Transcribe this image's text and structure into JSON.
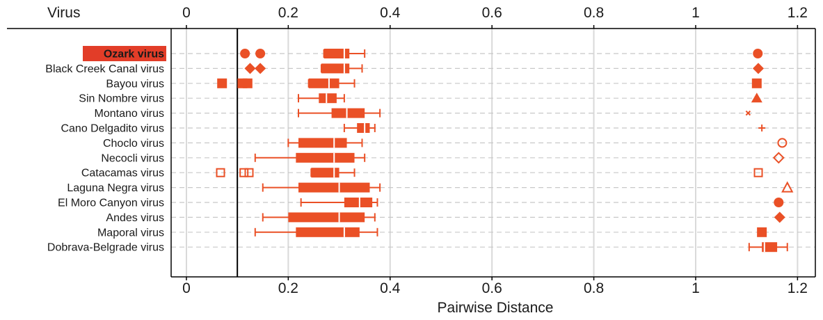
{
  "chart_data": {
    "type": "box",
    "column_header": "Virus",
    "xlabel": "Pairwise Distance",
    "xlim": [
      -0.03,
      1.235
    ],
    "x_ticks": [
      0,
      0.2,
      0.4,
      0.6,
      0.8,
      1,
      1.2
    ],
    "x_tick_labels": [
      "0",
      "0.2",
      "0.4",
      "0.6",
      "0.8",
      "1",
      "1.2"
    ],
    "reference_line_x": 0.1,
    "grid": true,
    "highlight": {
      "virus": "Ozark virus",
      "color": "#e23d28"
    },
    "colors": {
      "series": "#ea5026",
      "highlight_bg": "#e23d28",
      "grid": "#d9d9d9",
      "axis": "#000000"
    },
    "viruses": [
      {
        "name": "Ozark virus",
        "whisker_low": 0.27,
        "q1": 0.27,
        "median": 0.31,
        "q3": 0.32,
        "whisker_high": 0.35,
        "outliers": [
          {
            "x": 0.115,
            "symbol": "filled-circle"
          },
          {
            "x": 0.145,
            "symbol": "filled-circle"
          },
          {
            "x": 1.122,
            "symbol": "filled-circle"
          }
        ]
      },
      {
        "name": "Black Creek Canal virus",
        "whisker_low": 0.265,
        "q1": 0.265,
        "median": 0.31,
        "q3": 0.32,
        "whisker_high": 0.345,
        "outliers": [
          {
            "x": 0.125,
            "symbol": "filled-diamond"
          },
          {
            "x": 0.145,
            "symbol": "filled-diamond"
          },
          {
            "x": 1.123,
            "symbol": "filled-diamond"
          }
        ]
      },
      {
        "name": "Bayou virus",
        "whisker_low": 0.24,
        "q1": 0.24,
        "median": 0.28,
        "q3": 0.3,
        "whisker_high": 0.33,
        "outliers": [
          {
            "x": 0.07,
            "symbol": "filled-square"
          },
          {
            "x": 0.11,
            "symbol": "filled-square"
          },
          {
            "x": 0.12,
            "symbol": "filled-square"
          },
          {
            "x": 1.12,
            "symbol": "filled-square"
          }
        ]
      },
      {
        "name": "Sin Nombre virus",
        "whisker_low": 0.22,
        "q1": 0.26,
        "median": 0.275,
        "q3": 0.295,
        "whisker_high": 0.31,
        "outliers": [
          {
            "x": 1.12,
            "symbol": "filled-triangle"
          }
        ]
      },
      {
        "name": "Montano virus",
        "whisker_low": 0.22,
        "q1": 0.285,
        "median": 0.315,
        "q3": 0.35,
        "whisker_high": 0.38,
        "outliers": [
          {
            "x": 1.103,
            "symbol": "cross"
          }
        ]
      },
      {
        "name": "Cano Delgadito virus",
        "whisker_low": 0.31,
        "q1": 0.335,
        "median": 0.35,
        "q3": 0.36,
        "whisker_high": 0.37,
        "outliers": [
          {
            "x": 1.13,
            "symbol": "plus"
          }
        ]
      },
      {
        "name": "Choclo virus",
        "whisker_low": 0.2,
        "q1": 0.22,
        "median": 0.29,
        "q3": 0.315,
        "whisker_high": 0.345,
        "outliers": [
          {
            "x": 1.17,
            "symbol": "open-circle"
          }
        ]
      },
      {
        "name": "Necocli virus",
        "whisker_low": 0.135,
        "q1": 0.215,
        "median": 0.29,
        "q3": 0.33,
        "whisker_high": 0.35,
        "outliers": [
          {
            "x": 1.163,
            "symbol": "open-diamond"
          }
        ]
      },
      {
        "name": "Catacamas virus",
        "whisker_low": 0.245,
        "q1": 0.245,
        "median": 0.29,
        "q3": 0.3,
        "whisker_high": 0.33,
        "outliers": [
          {
            "x": 0.067,
            "symbol": "open-square"
          },
          {
            "x": 0.113,
            "symbol": "open-square"
          },
          {
            "x": 0.123,
            "symbol": "open-square"
          },
          {
            "x": 1.123,
            "symbol": "open-square"
          }
        ]
      },
      {
        "name": "Laguna Negra virus",
        "whisker_low": 0.15,
        "q1": 0.22,
        "median": 0.3,
        "q3": 0.36,
        "whisker_high": 0.38,
        "outliers": [
          {
            "x": 1.18,
            "symbol": "open-triangle"
          }
        ]
      },
      {
        "name": "El Moro Canyon virus",
        "whisker_low": 0.225,
        "q1": 0.31,
        "median": 0.34,
        "q3": 0.365,
        "whisker_high": 0.375,
        "outliers": [
          {
            "x": 1.163,
            "symbol": "filled-circle"
          }
        ]
      },
      {
        "name": "Andes virus",
        "whisker_low": 0.15,
        "q1": 0.2,
        "median": 0.3,
        "q3": 0.35,
        "whisker_high": 0.37,
        "outliers": [
          {
            "x": 1.165,
            "symbol": "filled-diamond"
          }
        ]
      },
      {
        "name": "Maporal virus",
        "whisker_low": 0.135,
        "q1": 0.215,
        "median": 0.31,
        "q3": 0.34,
        "whisker_high": 0.375,
        "outliers": [
          {
            "x": 1.13,
            "symbol": "filled-square"
          }
        ]
      },
      {
        "name": "Dobrava-Belgrade virus",
        "whisker_low": 1.105,
        "q1": 1.13,
        "median": 1.135,
        "q3": 1.16,
        "whisker_high": 1.18,
        "outliers": []
      }
    ]
  }
}
